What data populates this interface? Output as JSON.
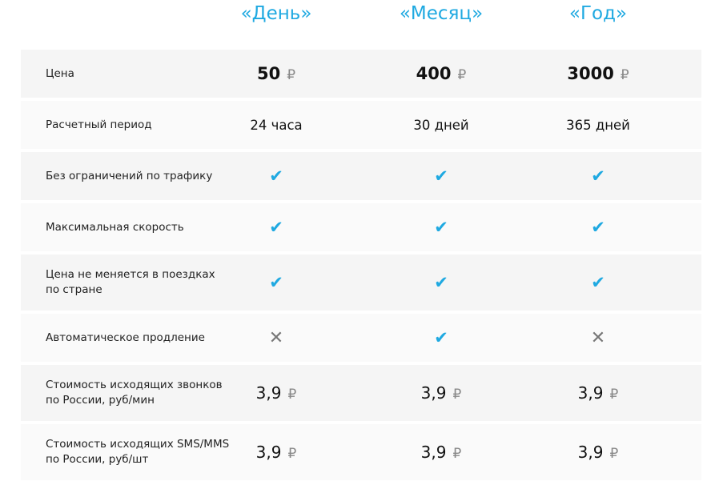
{
  "plans": [
    "«День»",
    "«Месяц»",
    "«Год»"
  ],
  "currency": "₽",
  "rows": [
    {
      "label": "Цена",
      "type": "price",
      "values": [
        "50",
        "400",
        "3000"
      ]
    },
    {
      "label": "Расчетный период",
      "type": "text",
      "values": [
        "24 часа",
        "30 дней",
        "365 дней"
      ]
    },
    {
      "label": "Без ограничений по трафику",
      "type": "bool",
      "values": [
        true,
        true,
        true
      ]
    },
    {
      "label": "Максимальная скорость",
      "type": "bool",
      "values": [
        true,
        true,
        true
      ]
    },
    {
      "label": "Цена не меняется в поездках\nпо стране",
      "type": "bool",
      "values": [
        true,
        true,
        true
      ]
    },
    {
      "label": "Автоматическое продление",
      "type": "bool",
      "values": [
        false,
        true,
        false
      ]
    },
    {
      "label": "Стоимость исходящих звонков\nпо России, руб/мин",
      "type": "num",
      "values": [
        "3,9",
        "3,9",
        "3,9"
      ]
    },
    {
      "label": "Стоимость исходящих SMS/MMS\nпо России, руб/шт",
      "type": "num",
      "values": [
        "3,9",
        "3,9",
        "3,9"
      ]
    }
  ],
  "colors": {
    "accent": "#1fa9e1",
    "check": "#1fa9e1",
    "cross": "#777777"
  },
  "icons": {
    "true": "check-icon",
    "false": "cross-icon"
  }
}
